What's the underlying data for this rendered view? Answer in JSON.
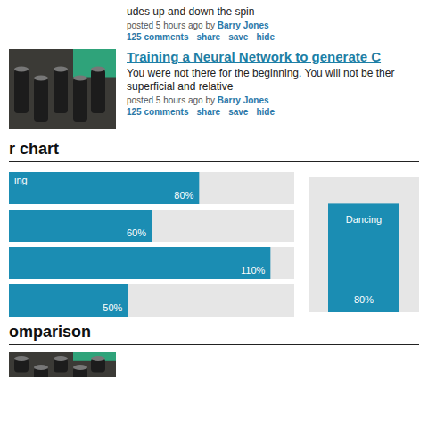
{
  "posts": [
    {
      "snippet": "udes up and down the spin",
      "meta": "posted 5 hours ago by",
      "author": "Barry Jones",
      "actions": [
        "125 comments",
        "share",
        "save",
        "hide"
      ]
    },
    {
      "title": "Training a Neural Network to generate C",
      "text": [
        "You were not there for the beginning. You will not be ther",
        "superficial and relative"
      ],
      "meta": "posted 5 hours ago by",
      "author": "Barry Jones",
      "actions": [
        "125 comments",
        "share",
        "save",
        "hide"
      ]
    }
  ],
  "chart_data": [
    {
      "type": "bar",
      "title": "r chart",
      "orientation": "horizontal",
      "categories": [
        "ing",
        null,
        null,
        null
      ],
      "values": [
        80,
        60,
        110,
        50
      ],
      "value_labels": [
        "80%",
        "60%",
        "110%",
        "50%"
      ],
      "data_labels": true,
      "xlim": [
        0,
        120
      ],
      "tick_labels": false,
      "color": "#1b8db3"
    },
    {
      "type": "bar",
      "categories": [
        "Dancing"
      ],
      "values": [
        80
      ],
      "value_labels": [
        "80%"
      ],
      "data_labels": true,
      "ylim": [
        0,
        100
      ],
      "tick_labels": false,
      "color": "#1b8db3"
    }
  ],
  "sections": [
    "omparison"
  ]
}
